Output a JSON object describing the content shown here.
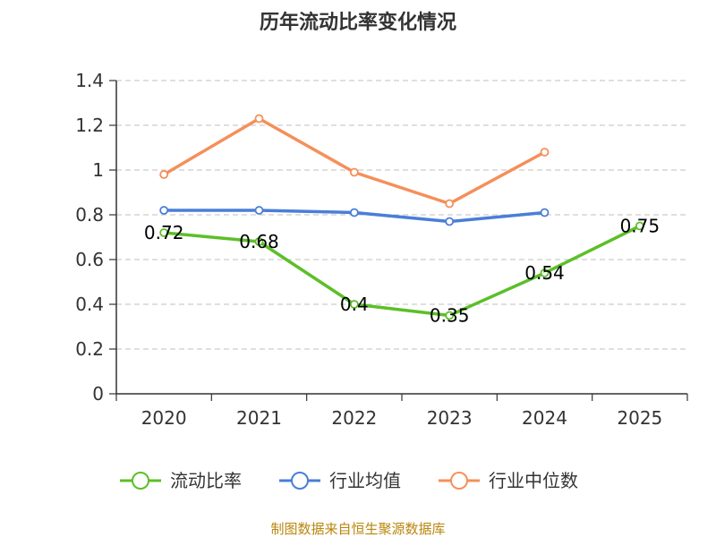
{
  "chart_data": {
    "type": "line",
    "title": "历年流动比率变化情况",
    "categories": [
      "2020",
      "2021",
      "2022",
      "2023",
      "2024",
      "2025"
    ],
    "y_ticks": [
      "0",
      "0.2",
      "0.4",
      "0.6",
      "0.8",
      "1",
      "1.2",
      "1.4"
    ],
    "ylim": [
      0,
      1.4
    ],
    "grid": true,
    "legend_position": "bottom",
    "series": [
      {
        "name": "流动比率",
        "color": "#5cbf28",
        "values": [
          0.72,
          0.68,
          0.4,
          0.35,
          0.54,
          0.75
        ],
        "labels": [
          "0.72",
          "0.68",
          "0.4",
          "0.35",
          "0.54",
          "0.75"
        ],
        "show_labels": true
      },
      {
        "name": "行业均值",
        "color": "#4a7ed8",
        "values": [
          0.82,
          0.82,
          0.81,
          0.77,
          0.81,
          null
        ],
        "show_labels": false
      },
      {
        "name": "行业中位数",
        "color": "#f58f5a",
        "values": [
          0.98,
          1.23,
          0.99,
          0.85,
          1.08,
          null
        ],
        "show_labels": false
      }
    ]
  },
  "source": "制图数据来自恒生聚源数据库"
}
